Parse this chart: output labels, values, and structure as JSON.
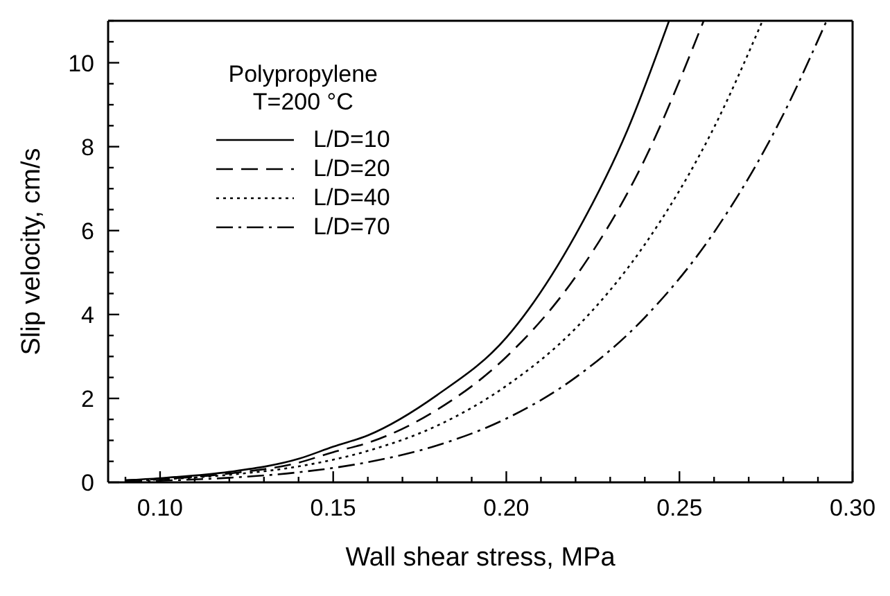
{
  "chart_data": {
    "type": "line",
    "xlabel": "Wall shear stress, MPa",
    "ylabel": "Slip velocity, cm/s",
    "legend_title": "Polypropylene\nT=200 °C",
    "legend": "top left",
    "marker": "none",
    "xlim": [
      0.085,
      0.3
    ],
    "xticks": [
      {
        "value": 0.09,
        "label": null
      },
      {
        "value": 0.1,
        "label": "0.10"
      },
      {
        "value": 0.11,
        "label": null
      },
      {
        "value": 0.12,
        "label": null
      },
      {
        "value": 0.13,
        "label": null
      },
      {
        "value": 0.14,
        "label": null
      },
      {
        "value": 0.15,
        "label": "0.15"
      },
      {
        "value": 0.16,
        "label": null
      },
      {
        "value": 0.17,
        "label": null
      },
      {
        "value": 0.18,
        "label": null
      },
      {
        "value": 0.19,
        "label": null
      },
      {
        "value": 0.2,
        "label": "0.20"
      },
      {
        "value": 0.21,
        "label": null
      },
      {
        "value": 0.22,
        "label": null
      },
      {
        "value": 0.23,
        "label": null
      },
      {
        "value": 0.24,
        "label": null
      },
      {
        "value": 0.25,
        "label": "0.25"
      },
      {
        "value": 0.26,
        "label": null
      },
      {
        "value": 0.27,
        "label": null
      },
      {
        "value": 0.28,
        "label": null
      },
      {
        "value": 0.29,
        "label": null
      },
      {
        "value": 0.3,
        "label": "0.30"
      }
    ],
    "ylim": [
      0,
      11
    ],
    "yticks": [
      0,
      {
        "value": 0.5,
        "label": null
      },
      {
        "value": 1,
        "label": null
      },
      {
        "value": 1.5,
        "label": null
      },
      2,
      {
        "value": 2.5,
        "label": null
      },
      {
        "value": 3,
        "label": null
      },
      {
        "value": 3.5,
        "label": null
      },
      4,
      {
        "value": 4.5,
        "label": null
      },
      {
        "value": 5,
        "label": null
      },
      {
        "value": 5.5,
        "label": null
      },
      6,
      {
        "value": 6.5,
        "label": null
      },
      {
        "value": 7,
        "label": null
      },
      {
        "value": 7.5,
        "label": null
      },
      8,
      {
        "value": 8.5,
        "label": null
      },
      {
        "value": 9,
        "label": null
      },
      {
        "value": 9.5,
        "label": null
      },
      10,
      {
        "value": 10.5,
        "label": null
      },
      {
        "value": 11,
        "label": null
      }
    ],
    "series": [
      {
        "name": "L/D=10",
        "color": "#000000",
        "line_style": "solid",
        "x": [
          0.09,
          0.1,
          0.12,
          0.14,
          0.15,
          0.16,
          0.18,
          0.2,
          0.22,
          0.235,
          0.247
        ],
        "values": [
          0.05,
          0.1,
          0.25,
          0.56,
          0.85,
          1.12,
          2.08,
          3.45,
          5.9,
          8.4,
          11
        ]
      },
      {
        "name": "L/D=20",
        "color": "#000000",
        "line_style": "dashed",
        "x": [
          0.09,
          0.1,
          0.12,
          0.14,
          0.15,
          0.16,
          0.18,
          0.2,
          0.22,
          0.24,
          0.257
        ],
        "values": [
          0.05,
          0.08,
          0.21,
          0.47,
          0.72,
          0.94,
          1.73,
          2.99,
          4.9,
          7.7,
          11
        ]
      },
      {
        "name": "L/D=40",
        "color": "#000000",
        "line_style": "dotted",
        "x": [
          0.09,
          0.1,
          0.12,
          0.14,
          0.16,
          0.18,
          0.2,
          0.22,
          0.24,
          0.26,
          0.274
        ],
        "values": [
          0.04,
          0.07,
          0.18,
          0.38,
          0.75,
          1.35,
          2.3,
          3.67,
          5.67,
          8.46,
          11
        ]
      },
      {
        "name": "L/D=70",
        "color": "#000000",
        "line_style": "dashdot",
        "x": [
          0.09,
          0.1,
          0.12,
          0.14,
          0.16,
          0.18,
          0.2,
          0.22,
          0.24,
          0.26,
          0.28,
          0.2925
        ],
        "values": [
          0.02,
          0.04,
          0.11,
          0.24,
          0.48,
          0.88,
          1.52,
          2.5,
          3.93,
          5.96,
          8.77,
          11
        ]
      }
    ]
  }
}
